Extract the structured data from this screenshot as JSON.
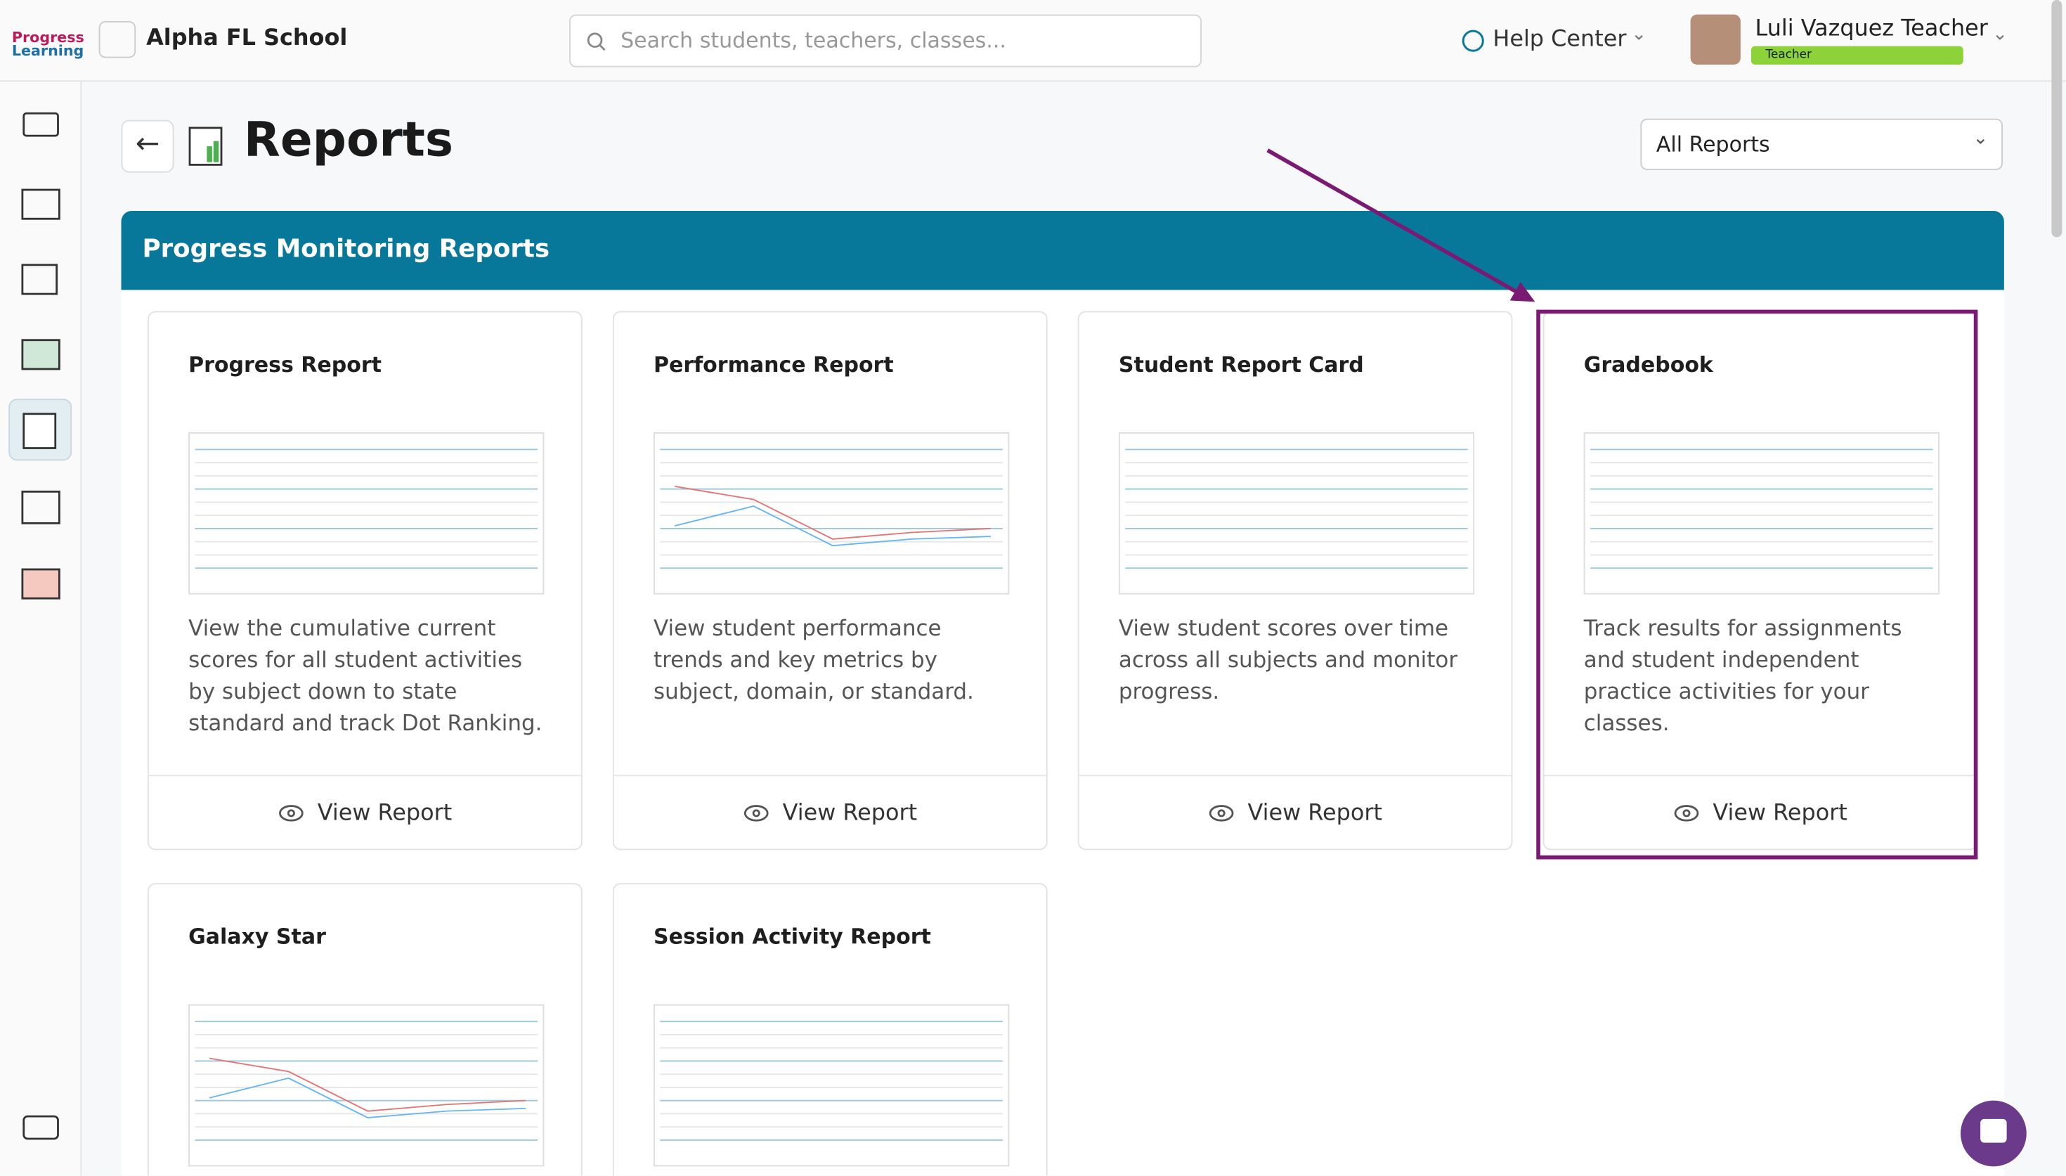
{
  "header": {
    "logo": [
      "Progress",
      "Learning"
    ],
    "school": "Alpha FL School",
    "search_placeholder": "Search students, teachers, classes...",
    "help": "Help Center",
    "user_name": "Luli Vazquez Teacher",
    "user_role": "Teacher"
  },
  "page": {
    "title": "Reports",
    "filter": "All Reports"
  },
  "section": {
    "title": "Progress Monitoring Reports",
    "cards": [
      {
        "title": "Progress Report",
        "description": "View the cumulative current scores for all student activities by subject down to state standard and track Dot Ranking.",
        "action": "View Report"
      },
      {
        "title": "Performance Report",
        "description": "View student performance trends and key metrics by subject, domain, or standard.",
        "action": "View Report"
      },
      {
        "title": "Student Report Card",
        "description": "View student scores over time across all subjects and monitor progress.",
        "action": "View Report"
      },
      {
        "title": "Gradebook",
        "description": "Track results for assignments and student independent practice activities for your classes.",
        "action": "View Report"
      },
      {
        "title": "Galaxy Star"
      },
      {
        "title": "Session Activity Report"
      }
    ]
  }
}
